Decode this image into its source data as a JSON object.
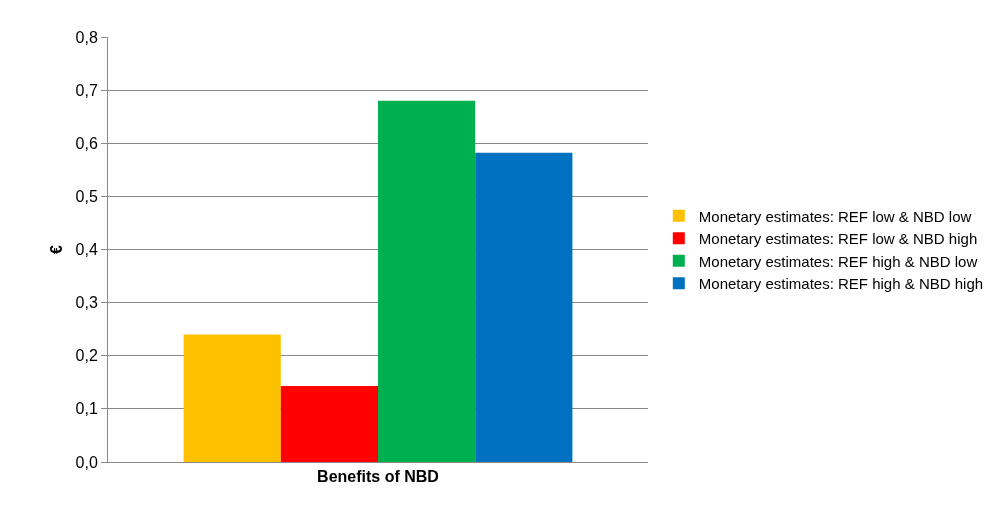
{
  "chart_data": {
    "type": "bar",
    "xlabel": null,
    "ylabel": "€",
    "categories": [
      "Benefits of NBD"
    ],
    "series": [
      {
        "name": "Monetary estimates: REF low & NBD low",
        "color": "#ffc000",
        "values": [
          0.24
        ]
      },
      {
        "name": "Monetary estimates: REF low & NBD high",
        "color": "#ff0000",
        "values": [
          0.143
        ]
      },
      {
        "name": "Monetary estimates: REF high & NBD low",
        "color": "#00b050",
        "values": [
          0.68
        ]
      },
      {
        "name": "Monetary estimates: REF high & NBD high",
        "color": "#0070c0",
        "values": [
          0.582
        ]
      }
    ],
    "ylim": [
      0,
      0.8
    ],
    "yticks": [
      {
        "value": 0,
        "label": "0,0"
      },
      {
        "value": 0.1,
        "label": "0,1"
      },
      {
        "value": 0.2,
        "label": "0,2"
      },
      {
        "value": 0.3,
        "label": "0,3"
      },
      {
        "value": 0.4,
        "label": "0,4"
      },
      {
        "value": 0.5,
        "label": "0,5"
      },
      {
        "value": 0.6,
        "label": "0,6"
      },
      {
        "value": 0.7,
        "label": "0,7"
      },
      {
        "value": 0.8,
        "label": "0,8"
      }
    ],
    "grid": "y",
    "legend": "right"
  }
}
